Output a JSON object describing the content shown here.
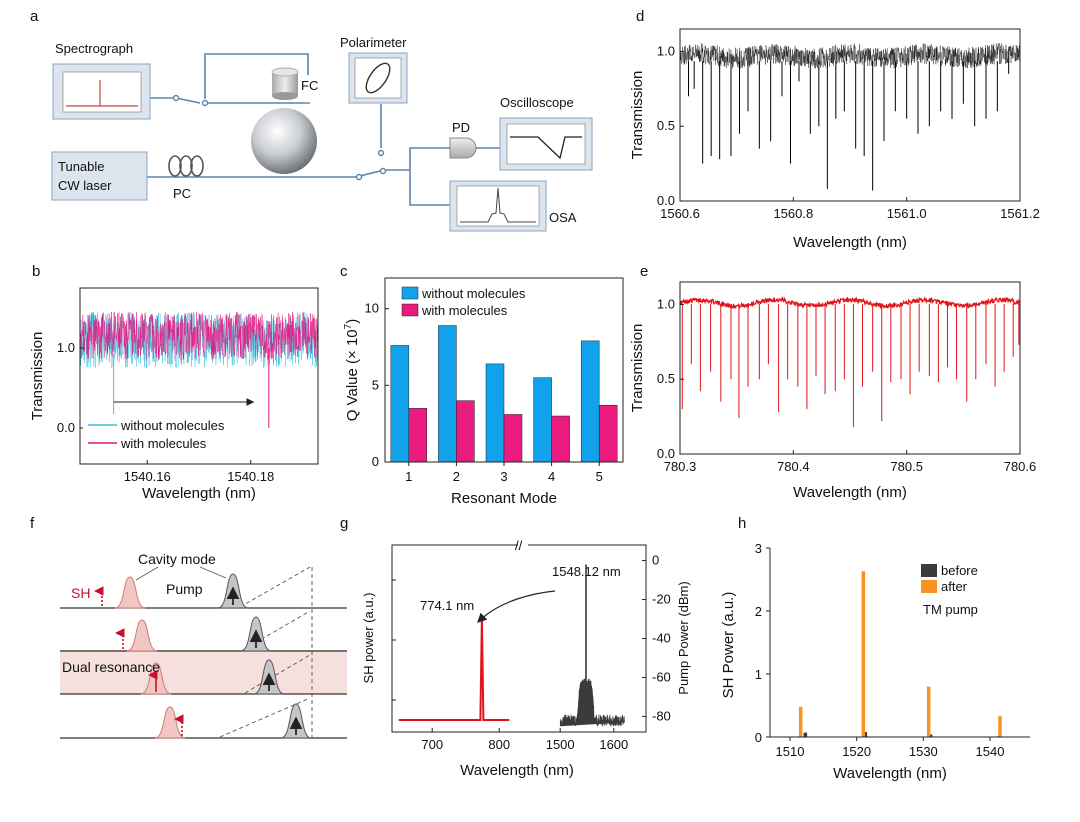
{
  "panels": {
    "a": "a",
    "b": "b",
    "c": "c",
    "d": "d",
    "e": "e",
    "f": "f",
    "g": "g",
    "h": "h"
  },
  "schematic": {
    "spectrograph": "Spectrograph",
    "fc": "FC",
    "polarimeter": "Polarimeter",
    "pd": "PD",
    "oscilloscope": "Oscilloscope",
    "laser_line1": "Tunable",
    "laser_line2": "CW laser",
    "pc": "PC",
    "osa": "OSA"
  },
  "colors": {
    "cyan": "#3fbfdc",
    "magenta": "#e6157f",
    "blue": "#12a2ec",
    "pink": "#ea1c80",
    "red": "#e0141b",
    "orange": "#f7931e",
    "gray": "#3b3b3b",
    "schematic_line": "#5b86ad",
    "box_fill": "#dce4ee"
  },
  "chart_data": [
    {
      "id": "b",
      "type": "line",
      "xlabel": "Wavelength (nm)",
      "ylabel": "Transmission",
      "xlim": [
        1540.147,
        1540.193
      ],
      "ylim": [
        -0.45,
        1.75
      ],
      "xticks": [
        "1540.16",
        "1540.18"
      ],
      "xtick_values": [
        1540.16,
        1540.18
      ],
      "yticks": [
        "0.0",
        "1.0"
      ],
      "ytick_values": [
        0.0,
        1.0
      ],
      "series": [
        {
          "name": "without molecules",
          "color": "#3fbfdc",
          "baseline": 1.1,
          "noise": 0.35,
          "dips": [
            {
              "x": 1540.1535,
              "y": -0.05
            }
          ]
        },
        {
          "name": "with molecules",
          "color": "#e6157f",
          "baseline": 1.15,
          "noise": 0.3,
          "dips": [
            {
              "x": 1540.1835,
              "y": 0.0
            }
          ]
        }
      ],
      "annotation": "arrow from 1540.1535 to 1540.1835"
    },
    {
      "id": "c",
      "type": "bar",
      "xlabel": "Resonant Mode",
      "ylabel": "Q Value (× 10",
      "ylabel_exp": "7",
      "ylabel_end": ")",
      "categories": [
        "1",
        "2",
        "3",
        "4",
        "5"
      ],
      "yticks": [
        "0",
        "5",
        "10"
      ],
      "ytick_values": [
        0,
        5,
        10
      ],
      "ylim": [
        0,
        12
      ],
      "series": [
        {
          "name": "without molecules",
          "color": "#12a2ec",
          "values": [
            7.6,
            8.9,
            6.4,
            5.5,
            7.9
          ]
        },
        {
          "name": "with molecules",
          "color": "#ea1c80",
          "values": [
            3.5,
            4.0,
            3.1,
            3.0,
            3.7
          ]
        }
      ]
    },
    {
      "id": "d",
      "type": "line",
      "xlabel": "Wavelength (nm)",
      "ylabel": "Transmission",
      "xlim": [
        1560.6,
        1561.2
      ],
      "ylim": [
        0.0,
        1.15
      ],
      "xticks": [
        "1560.6",
        "1560.8",
        "1561.0",
        "1561.2"
      ],
      "xtick_values": [
        1560.6,
        1560.8,
        1561.0,
        1561.2
      ],
      "yticks": [
        "0.0",
        "0.5",
        "1.0"
      ],
      "ytick_values": [
        0.0,
        0.5,
        1.0
      ],
      "series": [
        {
          "name": "transmission",
          "color": "#000000",
          "baseline": 0.97,
          "noise": 0.07,
          "dips": [
            {
              "x": 1560.615,
              "y": 0.7
            },
            {
              "x": 1560.625,
              "y": 0.75
            },
            {
              "x": 1560.64,
              "y": 0.25
            },
            {
              "x": 1560.655,
              "y": 0.3
            },
            {
              "x": 1560.67,
              "y": 0.28
            },
            {
              "x": 1560.69,
              "y": 0.3
            },
            {
              "x": 1560.705,
              "y": 0.45
            },
            {
              "x": 1560.72,
              "y": 0.6
            },
            {
              "x": 1560.74,
              "y": 0.35
            },
            {
              "x": 1560.76,
              "y": 0.4
            },
            {
              "x": 1560.78,
              "y": 0.7
            },
            {
              "x": 1560.795,
              "y": 0.25
            },
            {
              "x": 1560.81,
              "y": 0.8
            },
            {
              "x": 1560.83,
              "y": 0.45
            },
            {
              "x": 1560.845,
              "y": 0.5
            },
            {
              "x": 1560.86,
              "y": 0.08
            },
            {
              "x": 1560.875,
              "y": 0.55
            },
            {
              "x": 1560.89,
              "y": 0.6
            },
            {
              "x": 1560.91,
              "y": 0.35
            },
            {
              "x": 1560.925,
              "y": 0.3
            },
            {
              "x": 1560.94,
              "y": 0.07
            },
            {
              "x": 1560.96,
              "y": 0.4
            },
            {
              "x": 1560.98,
              "y": 0.6
            },
            {
              "x": 1561.0,
              "y": 0.55
            },
            {
              "x": 1561.02,
              "y": 0.45
            },
            {
              "x": 1561.04,
              "y": 0.5
            },
            {
              "x": 1561.06,
              "y": 0.6
            },
            {
              "x": 1561.08,
              "y": 0.55
            },
            {
              "x": 1561.1,
              "y": 0.65
            },
            {
              "x": 1561.12,
              "y": 0.5
            },
            {
              "x": 1561.14,
              "y": 0.55
            },
            {
              "x": 1561.16,
              "y": 0.6
            },
            {
              "x": 1561.18,
              "y": 0.85
            }
          ]
        }
      ]
    },
    {
      "id": "e",
      "type": "line",
      "xlabel": "Wavelength (nm)",
      "ylabel": "Transmission",
      "xlim": [
        780.3,
        780.6
      ],
      "ylim": [
        0.0,
        1.15
      ],
      "xticks": [
        "780.3",
        "780.4",
        "780.5",
        "780.6"
      ],
      "xtick_values": [
        780.3,
        780.4,
        780.5,
        780.6
      ],
      "yticks": [
        "0.0",
        "0.5",
        "1.0"
      ],
      "ytick_values": [
        0.0,
        0.5,
        1.0
      ],
      "series": [
        {
          "name": "transmission",
          "color": "#e0141b",
          "baseline": 1.01,
          "noise": 0.015,
          "dips": [
            {
              "x": 780.302,
              "y": 0.3
            },
            {
              "x": 780.31,
              "y": 0.6
            },
            {
              "x": 780.318,
              "y": 0.42
            },
            {
              "x": 780.327,
              "y": 0.55
            },
            {
              "x": 780.336,
              "y": 0.35
            },
            {
              "x": 780.345,
              "y": 0.5
            },
            {
              "x": 780.352,
              "y": 0.24
            },
            {
              "x": 780.36,
              "y": 0.45
            },
            {
              "x": 780.37,
              "y": 0.5
            },
            {
              "x": 780.378,
              "y": 0.6
            },
            {
              "x": 780.387,
              "y": 0.28
            },
            {
              "x": 780.395,
              "y": 0.5
            },
            {
              "x": 780.404,
              "y": 0.45
            },
            {
              "x": 780.412,
              "y": 0.3
            },
            {
              "x": 780.42,
              "y": 0.52
            },
            {
              "x": 780.428,
              "y": 0.4
            },
            {
              "x": 780.437,
              "y": 0.42
            },
            {
              "x": 780.445,
              "y": 0.5
            },
            {
              "x": 780.453,
              "y": 0.18
            },
            {
              "x": 780.461,
              "y": 0.45
            },
            {
              "x": 780.47,
              "y": 0.55
            },
            {
              "x": 780.478,
              "y": 0.22
            },
            {
              "x": 780.486,
              "y": 0.48
            },
            {
              "x": 780.495,
              "y": 0.5
            },
            {
              "x": 780.503,
              "y": 0.4
            },
            {
              "x": 780.511,
              "y": 0.55
            },
            {
              "x": 780.52,
              "y": 0.52
            },
            {
              "x": 780.528,
              "y": 0.48
            },
            {
              "x": 780.536,
              "y": 0.58
            },
            {
              "x": 780.544,
              "y": 0.5
            },
            {
              "x": 780.553,
              "y": 0.35
            },
            {
              "x": 780.561,
              "y": 0.5
            },
            {
              "x": 780.57,
              "y": 0.6
            },
            {
              "x": 780.578,
              "y": 0.45
            },
            {
              "x": 780.586,
              "y": 0.55
            },
            {
              "x": 780.594,
              "y": 0.65
            },
            {
              "x": 780.599,
              "y": 0.73
            }
          ]
        }
      ]
    },
    {
      "id": "g",
      "type": "line",
      "xlabel": "Wavelength (nm)",
      "ylabel_left": "SH power (a.u.)",
      "ylabel_right": "Pump Power (dBm)",
      "xticks": [
        "700",
        "800",
        "1500",
        "1600"
      ],
      "yticks_right": [
        "0",
        "-20",
        "-40",
        "-60",
        "-80"
      ],
      "ytick_values_right": [
        0,
        -20,
        -40,
        -60,
        -80
      ],
      "peaks": [
        {
          "label": "774.1 nm",
          "x": 774.1,
          "color": "#e0141b"
        },
        {
          "label": "1548.12 nm",
          "x": 1548.12,
          "y_dbm": -2,
          "color": "#3b3b3b"
        }
      ],
      "break_mark": "//"
    },
    {
      "id": "h",
      "type": "bar",
      "xlabel": "Wavelength (nm)",
      "ylabel": "SH Power (a.u.)",
      "xlim": [
        1507,
        1546
      ],
      "ylim": [
        0,
        3
      ],
      "xticks": [
        "1510",
        "1520",
        "1530",
        "1540"
      ],
      "xtick_values": [
        1510,
        1520,
        1530,
        1540
      ],
      "yticks": [
        "0",
        "1",
        "2",
        "3"
      ],
      "ytick_values": [
        0,
        1,
        2,
        3
      ],
      "series": [
        {
          "name": "before",
          "color": "#3b3b3b",
          "x": [
            1512.3,
            1521.3,
            1531.1,
            1541.4
          ],
          "values": [
            0.07,
            0.08,
            0.04,
            0.02
          ]
        },
        {
          "name": "after",
          "color": "#f7931e",
          "x": [
            1511.6,
            1521.0,
            1530.8,
            1541.5
          ],
          "values": [
            0.48,
            2.63,
            0.8,
            0.33
          ]
        }
      ],
      "annotation": "TM pump"
    }
  ],
  "diagram_f": {
    "cavity_mode": "Cavity mode",
    "pump": "Pump",
    "sh": "SH",
    "dual_resonance": "Dual resonance"
  }
}
